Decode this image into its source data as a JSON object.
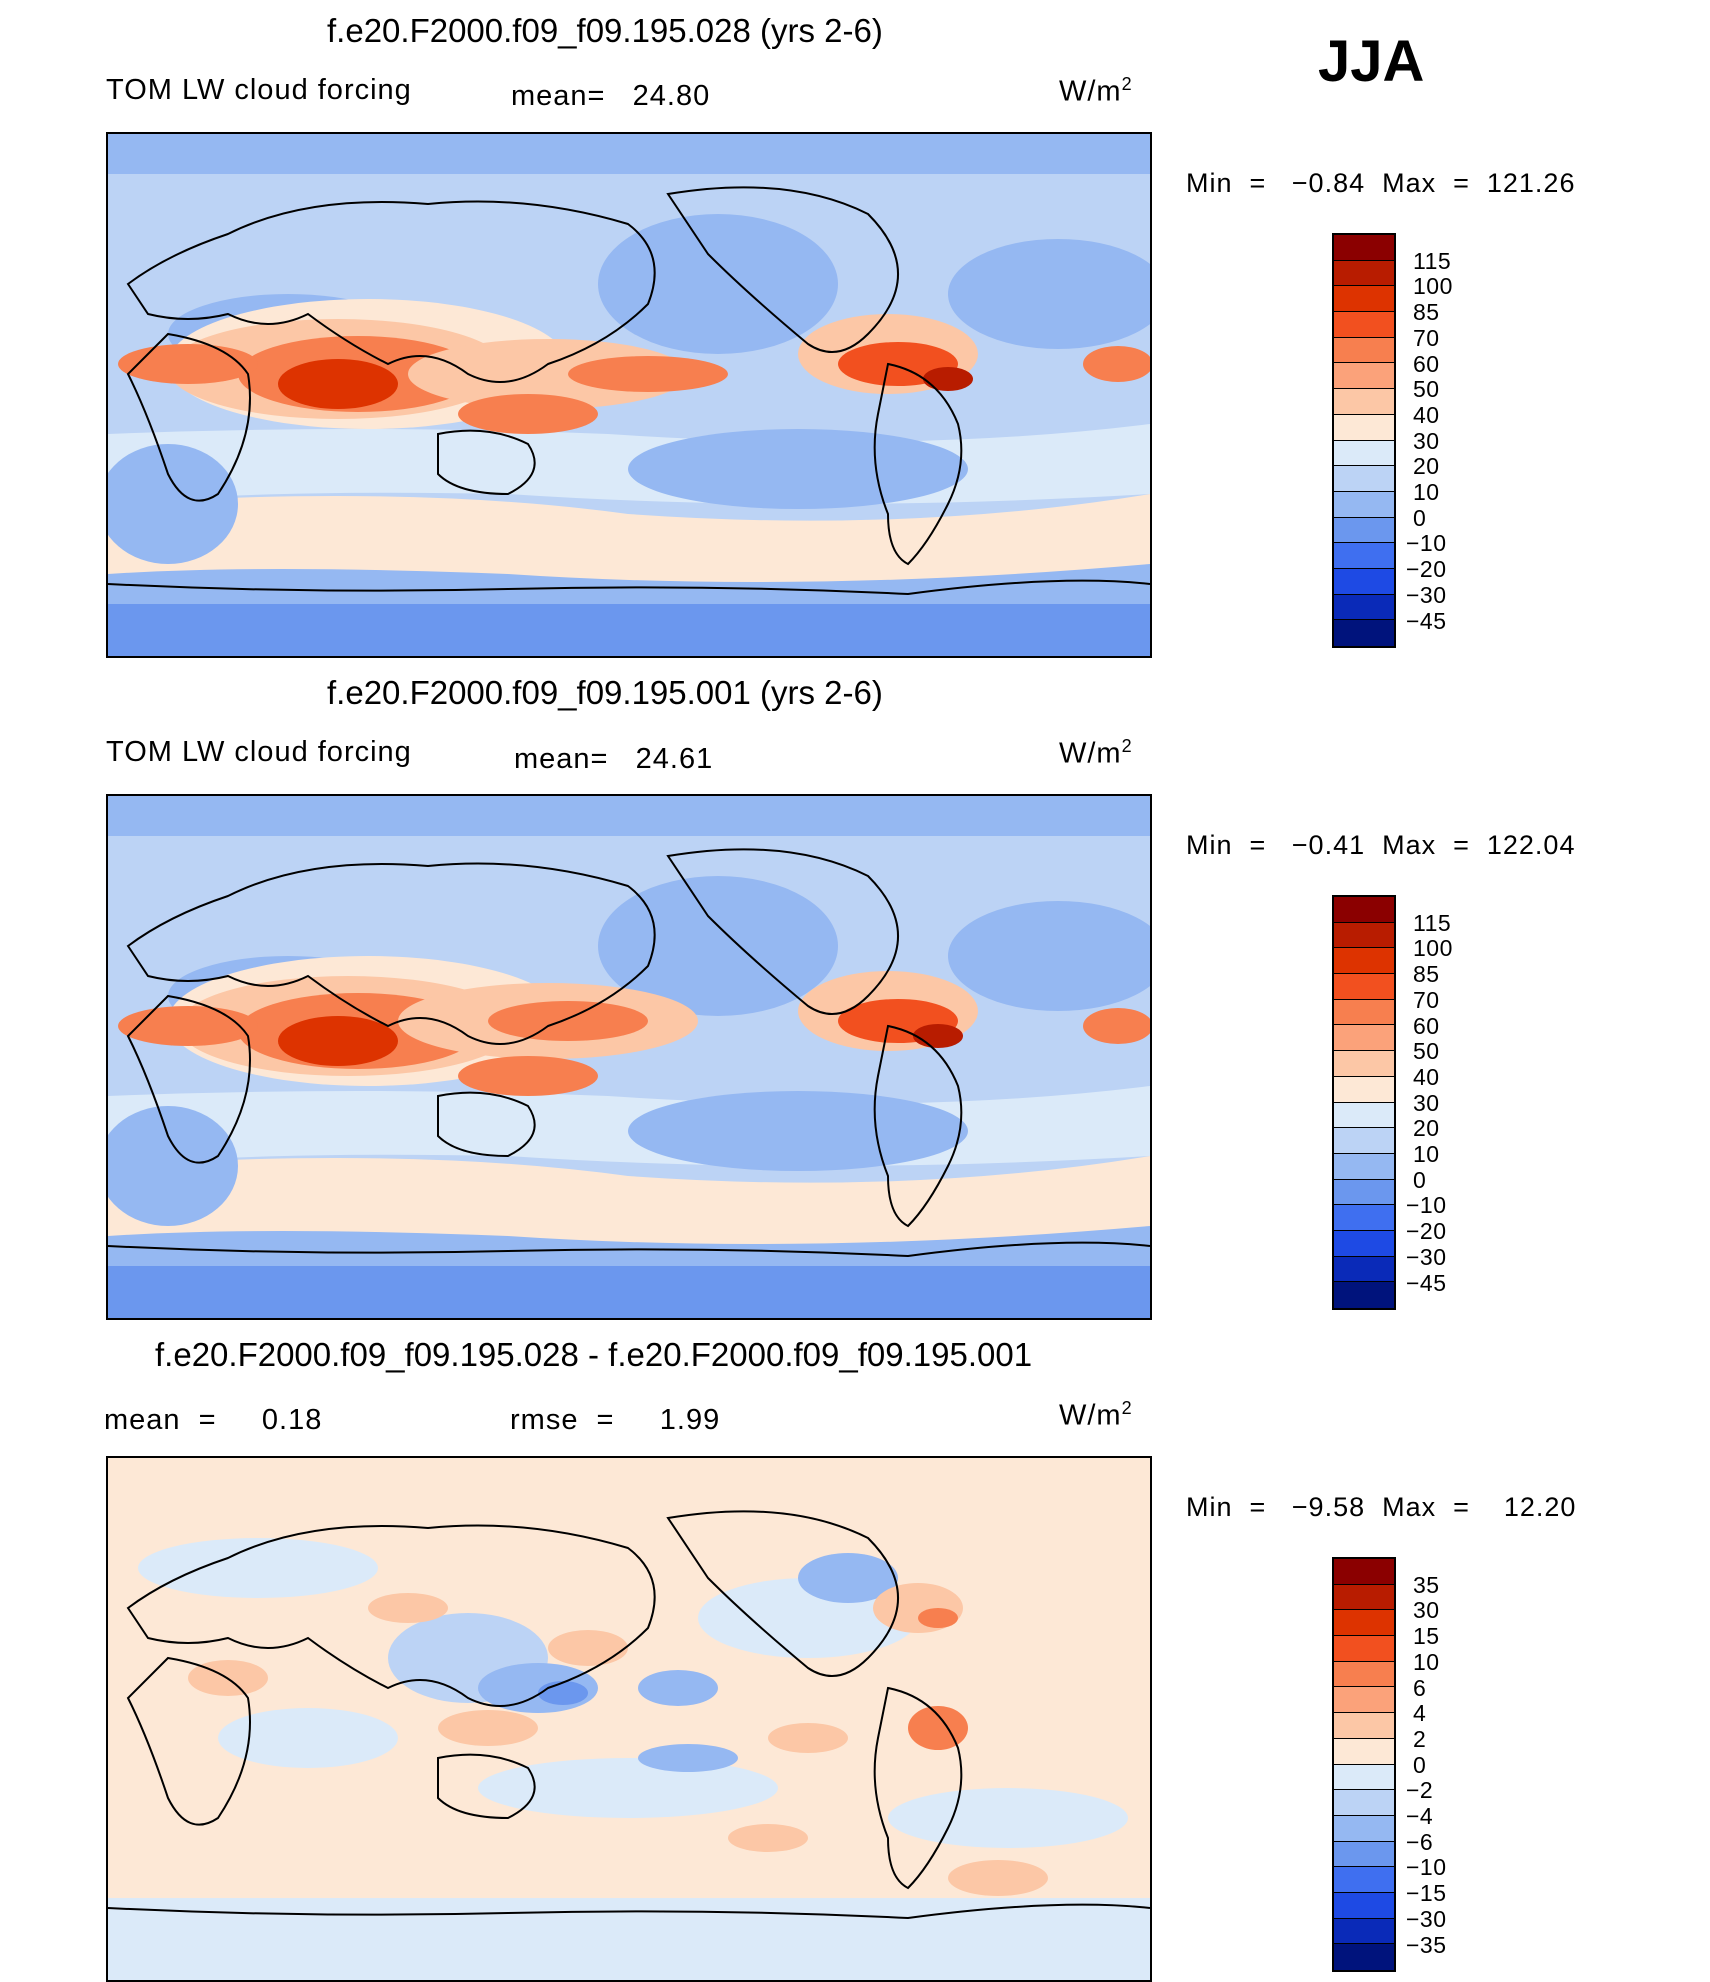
{
  "season": "JJA",
  "panels": [
    {
      "title": "f.e20.F2000.f09_f09.195.028 (yrs 2-6)",
      "variable": "TOM LW cloud forcing",
      "stat": "mean=   24.80",
      "units": "W/m",
      "units_exp": "2",
      "minmax": "Min  =   −0.84  Max  =  121.26",
      "colorbar_labels": [
        "115",
        "100",
        "85",
        "70",
        "60",
        "50",
        "40",
        "30",
        "20",
        "10",
        "0",
        "−10",
        "−20",
        "−30",
        "−45"
      ],
      "colorbar_colors": [
        "#8b0000",
        "#b81c00",
        "#dd3300",
        "#f2501f",
        "#f77f4f",
        "#fba27a",
        "#fcc7a6",
        "#fde8d6",
        "#dbeaf9",
        "#bcd3f5",
        "#95b8f2",
        "#6b97ee",
        "#3f6ff0",
        "#1e4ae4",
        "#0a2ab8",
        "#00137c"
      ]
    },
    {
      "title": "f.e20.F2000.f09_f09.195.001 (yrs 2-6)",
      "variable": "TOM LW cloud forcing",
      "stat": "mean=   24.61",
      "units": "W/m",
      "units_exp": "2",
      "minmax": "Min  =   −0.41  Max  =  122.04",
      "colorbar_labels": [
        "115",
        "100",
        "85",
        "70",
        "60",
        "50",
        "40",
        "30",
        "20",
        "10",
        "0",
        "−10",
        "−20",
        "−30",
        "−45"
      ],
      "colorbar_colors": [
        "#8b0000",
        "#b81c00",
        "#dd3300",
        "#f2501f",
        "#f77f4f",
        "#fba27a",
        "#fcc7a6",
        "#fde8d6",
        "#dbeaf9",
        "#bcd3f5",
        "#95b8f2",
        "#6b97ee",
        "#3f6ff0",
        "#1e4ae4",
        "#0a2ab8",
        "#00137c"
      ]
    },
    {
      "title": "f.e20.F2000.f09_f09.195.028 - f.e20.F2000.f09_f09.195.001",
      "variable": "mean  =     0.18",
      "stat": "rmse  =     1.99",
      "units": "W/m",
      "units_exp": "2",
      "minmax": "Min  =   −9.58  Max  =    12.20",
      "colorbar_labels": [
        "35",
        "30",
        "15",
        "10",
        "6",
        "4",
        "2",
        "0",
        "−2",
        "−4",
        "−6",
        "−10",
        "−15",
        "−30",
        "−35"
      ],
      "colorbar_colors": [
        "#8b0000",
        "#b81c00",
        "#dd3300",
        "#f2501f",
        "#f77f4f",
        "#fba27a",
        "#fcc7a6",
        "#fde8d6",
        "#dbeaf9",
        "#bcd3f5",
        "#95b8f2",
        "#6b97ee",
        "#3f6ff0",
        "#1e4ae4",
        "#0a2ab8",
        "#00137c"
      ]
    }
  ],
  "chart_data": [
    {
      "type": "heatmap",
      "title": "f.e20.F2000.f09_f09.195.028 (yrs 2-6)",
      "variable": "TOM LW cloud forcing",
      "units": "W/m2",
      "mean": 24.8,
      "min": -0.84,
      "max": 121.26,
      "contour_levels": [
        -45,
        -30,
        -20,
        -10,
        0,
        10,
        20,
        30,
        40,
        50,
        60,
        70,
        85,
        100,
        115
      ]
    },
    {
      "type": "heatmap",
      "title": "f.e20.F2000.f09_f09.195.001 (yrs 2-6)",
      "variable": "TOM LW cloud forcing",
      "units": "W/m2",
      "mean": 24.61,
      "min": -0.41,
      "max": 122.04,
      "contour_levels": [
        -45,
        -30,
        -20,
        -10,
        0,
        10,
        20,
        30,
        40,
        50,
        60,
        70,
        85,
        100,
        115
      ]
    },
    {
      "type": "heatmap",
      "title": "f.e20.F2000.f09_f09.195.028 - f.e20.F2000.f09_f09.195.001",
      "units": "W/m2",
      "mean": 0.18,
      "rmse": 1.99,
      "min": -9.58,
      "max": 12.2,
      "contour_levels": [
        -35,
        -30,
        -15,
        -10,
        -6,
        -4,
        -2,
        0,
        2,
        4,
        6,
        10,
        15,
        30,
        35
      ]
    }
  ]
}
